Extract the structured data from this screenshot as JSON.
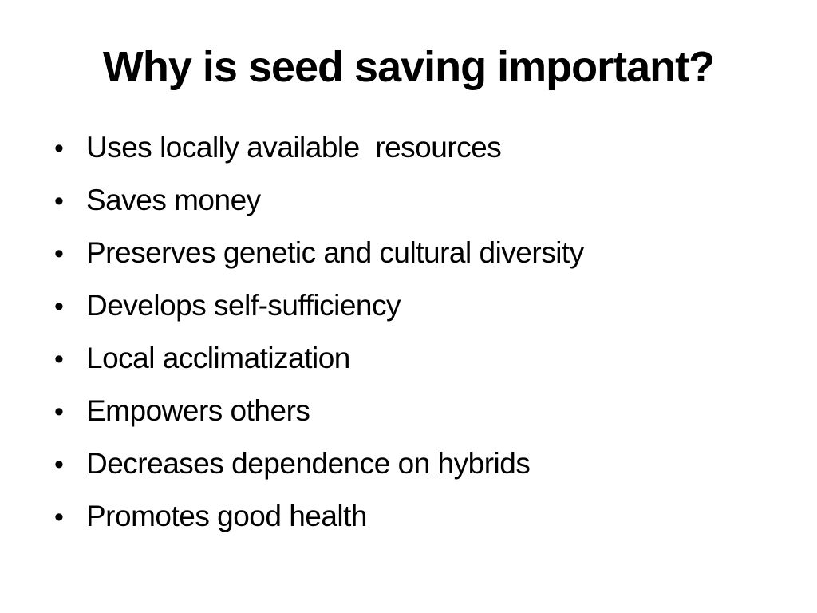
{
  "slide": {
    "title": "Why is seed saving important?",
    "bullet_glyph": "•",
    "bullets": [
      "Uses locally available  resources",
      "Saves money",
      "Preserves genetic and cultural diversity",
      "Develops self-sufficiency",
      "Local acclimatization",
      "Empowers others",
      "Decreases dependence on hybrids",
      "Promotes good health"
    ]
  },
  "colors": {
    "background": "#ffffff",
    "text": "#000000"
  }
}
